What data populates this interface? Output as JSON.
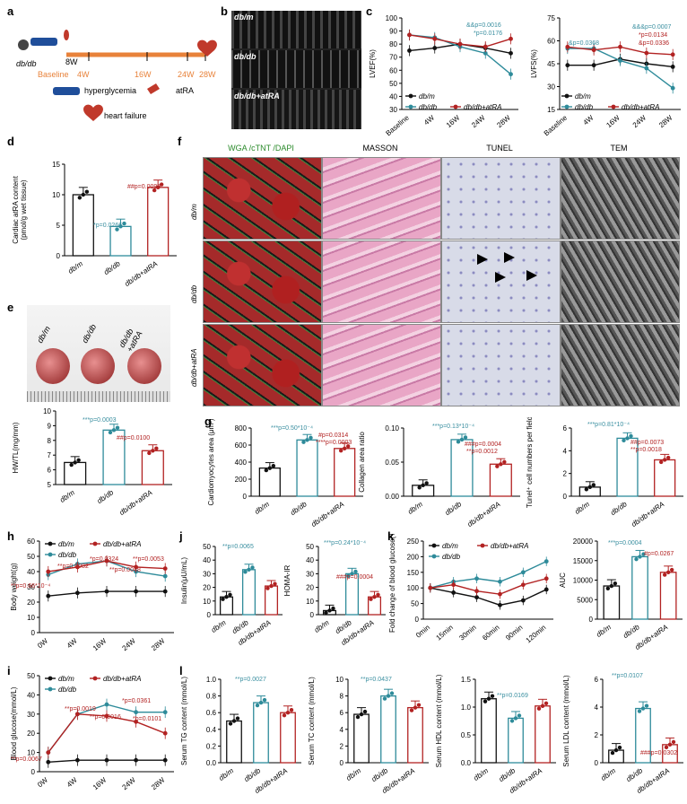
{
  "colors": {
    "dbm": "#111111",
    "dbdb": "#2e8b9a",
    "atra": "#b22222",
    "teal": "#3a8fa0"
  },
  "panels": {
    "a": {
      "letter": "a",
      "animal": "db/db",
      "times": [
        "8W",
        "4W",
        "16W",
        "24W",
        "28W"
      ],
      "baseline": "Baseline",
      "legend1": "hyperglycemia",
      "legend2": "atRA",
      "legend3": "heart failure"
    },
    "b": {
      "letter": "b",
      "rows": [
        "db/m",
        "db/db",
        "db/db+atRA"
      ]
    },
    "c": {
      "letter": "c",
      "lvef_ylabel": "LVEF(%)",
      "lvfs_ylabel": "LVFS(%)",
      "xcats": [
        "Baseline",
        "4W",
        "16W",
        "24W",
        "28W"
      ],
      "lvef_ann": [
        "&&p=0.0016",
        "*p=0.0176"
      ],
      "lvfs_ann": [
        "&p=0.0368",
        "&&&p=0.0007",
        "*p=0.0134",
        "&p=0.0336"
      ],
      "legend": [
        "db/m",
        "db/db",
        "db/db+atRA"
      ]
    },
    "d": {
      "letter": "d",
      "ylabel": "Cardiac atRA content",
      "ylabel2": "(pmol/g wet tissue)",
      "ann1": "*p=0.0266",
      "ann2": "##p=0.0095"
    },
    "e": {
      "letter": "e",
      "labels": [
        "db/m",
        "db/db",
        "db/db +atRA"
      ],
      "ylabel": "HW/TL(mg/mm)",
      "ann1": "***p=0.0003",
      "ann2": "##p=0.0100"
    },
    "f": {
      "letter": "f",
      "cols": [
        "WGA /cTNT /DAPI",
        "MASSON",
        "TUNEL",
        "TEM"
      ],
      "rows": [
        "db/m",
        "db/db",
        "db/db+atRA"
      ]
    },
    "g": {
      "letter": "g",
      "y1": "Cardiomyocytes area (μm²)",
      "y2": "Collagen area ratio",
      "y3": "Tunel⁺ cell numbers per field",
      "ann1": [
        "***p=0.50*10⁻⁴",
        "#p=0.0314",
        "****p=0.0003"
      ],
      "ann2": [
        "***p=0.13*10⁻⁴",
        "###p=0.0004",
        "**p=0.0012"
      ],
      "ann3": [
        "***p=0.81*10⁻⁴",
        "##p=0.0073",
        "**p=0.0018"
      ]
    },
    "h": {
      "letter": "h",
      "ylabel": "Body weight(g)",
      "xcats": [
        "0W",
        "4W",
        "16W",
        "24W",
        "28W"
      ],
      "legend": [
        "db/m",
        "db/db+atRA",
        "db/db"
      ],
      "ann": [
        "**p=0.0082",
        "*p=0.0324",
        "**p=0.0048",
        "**p=0.0053",
        "**p=0.66*10⁻⁴"
      ]
    },
    "i": {
      "letter": "i",
      "ylabel": "Blood glucose(mmol/L)",
      "xcats": [
        "0W",
        "4W",
        "16W",
        "24W",
        "28W"
      ],
      "legend": [
        "db/m",
        "db/db+atRA",
        "db/db"
      ],
      "ann": [
        "*p=0.0361",
        "**p=0.0019",
        "**p=0.0016",
        "*p=0.0101",
        "**p=0.0067"
      ]
    },
    "j": {
      "letter": "j",
      "y1": "Insulin(μU/mL)",
      "y2": "HOMA-IR",
      "ann1": "**p=0.0065",
      "ann2": [
        "***p=0.24*10⁻⁴",
        "###p=0.0004"
      ]
    },
    "k": {
      "letter": "k",
      "ylabel": "Fold change of blood glucose(%)",
      "xcats": [
        "0min",
        "15min",
        "30min",
        "60min",
        "90min",
        "120min"
      ],
      "legend": [
        "db/m",
        "db/db+atRA",
        "db/db"
      ],
      "y2": "AUC",
      "ann": [
        "***p=0.0004",
        "#p=0.0267"
      ]
    },
    "l": {
      "letter": "l",
      "y1": "Serum TG content (mmol/L)",
      "y2": "Serum TC content (mmol/L)",
      "y3": "Serum HDL content (mmol/L)",
      "y4": "Serum LDL content (mmol/L)",
      "ann": [
        "**p=0.0027",
        "**p=0.0437",
        "**p=0.0169",
        "**p=0.0107",
        "###p=0.0302"
      ]
    },
    "groups": [
      "db/m",
      "db/db",
      "db/db+atRA"
    ]
  },
  "chart_data": [
    {
      "type": "line",
      "id": "c-lvef",
      "categories": [
        "Baseline",
        "4W",
        "16W",
        "24W",
        "28W"
      ],
      "ylim": [
        30,
        100
      ],
      "series": [
        {
          "name": "db/m",
          "values": [
            75,
            77,
            80,
            77,
            73
          ]
        },
        {
          "name": "db/db",
          "values": [
            87,
            85,
            78,
            73,
            57
          ]
        },
        {
          "name": "db/db+atRA",
          "values": [
            87,
            84,
            80,
            78,
            84
          ]
        }
      ]
    },
    {
      "type": "line",
      "id": "c-lvfs",
      "categories": [
        "Baseline",
        "4W",
        "16W",
        "24W",
        "28W"
      ],
      "ylim": [
        15,
        75
      ],
      "series": [
        {
          "name": "db/m",
          "values": [
            44,
            44,
            48,
            45,
            43
          ]
        },
        {
          "name": "db/db",
          "values": [
            55,
            55,
            47,
            42,
            29
          ]
        },
        {
          "name": "db/db+atRA",
          "values": [
            56,
            54,
            56,
            52,
            51
          ]
        }
      ]
    },
    {
      "type": "bar",
      "id": "d",
      "categories": [
        "db/m",
        "db/db",
        "db/db+atRA"
      ],
      "values": [
        10,
        4.8,
        11.2
      ],
      "ylim": [
        0,
        15
      ]
    },
    {
      "type": "bar",
      "id": "e",
      "categories": [
        "db/m",
        "db/db",
        "db/db+atRA"
      ],
      "values": [
        6.5,
        8.7,
        7.3
      ],
      "ylim": [
        5,
        10
      ]
    },
    {
      "type": "bar",
      "id": "g1",
      "categories": [
        "db/m",
        "db/db",
        "db/db+atRA"
      ],
      "values": [
        330,
        660,
        560
      ],
      "ylim": [
        0,
        800
      ]
    },
    {
      "type": "bar",
      "id": "g2",
      "categories": [
        "db/m",
        "db/db",
        "db/db+atRA"
      ],
      "values": [
        0.016,
        0.083,
        0.047
      ],
      "ylim": [
        0,
        0.1
      ]
    },
    {
      "type": "bar",
      "id": "g3",
      "categories": [
        "db/m",
        "db/db",
        "db/db+atRA"
      ],
      "values": [
        0.8,
        5.1,
        3.2
      ],
      "ylim": [
        0,
        6
      ]
    },
    {
      "type": "line",
      "id": "h",
      "categories": [
        "0W",
        "4W",
        "16W",
        "24W",
        "28W"
      ],
      "ylim": [
        0,
        60
      ],
      "series": [
        {
          "name": "db/m",
          "values": [
            24,
            26,
            27,
            27,
            27
          ]
        },
        {
          "name": "db/db",
          "values": [
            38,
            45,
            47,
            40,
            37
          ]
        },
        {
          "name": "db/db+atRA",
          "values": [
            40,
            43,
            47,
            43,
            42
          ]
        }
      ]
    },
    {
      "type": "line",
      "id": "i",
      "categories": [
        "0W",
        "4W",
        "16W",
        "24W",
        "28W"
      ],
      "ylim": [
        0,
        50
      ],
      "series": [
        {
          "name": "db/m",
          "values": [
            5,
            6,
            6,
            6,
            6
          ]
        },
        {
          "name": "db/db",
          "values": [
            10,
            30,
            35,
            31,
            31
          ]
        },
        {
          "name": "db/db+atRA",
          "values": [
            10,
            30,
            29,
            26,
            20
          ]
        }
      ]
    },
    {
      "type": "bar",
      "id": "j1",
      "categories": [
        "db/m",
        "db/db",
        "db/db+atRA"
      ],
      "values": [
        13,
        33,
        21
      ],
      "ylim": [
        0,
        50
      ]
    },
    {
      "type": "bar",
      "id": "j2",
      "categories": [
        "db/m",
        "db/db",
        "db/db+atRA"
      ],
      "values": [
        3,
        30,
        13
      ],
      "ylim": [
        0,
        50
      ]
    },
    {
      "type": "line",
      "id": "k",
      "categories": [
        "0min",
        "15min",
        "30min",
        "60min",
        "90min",
        "120min"
      ],
      "ylim": [
        0,
        250
      ],
      "series": [
        {
          "name": "db/m",
          "values": [
            100,
            85,
            70,
            45,
            60,
            95
          ]
        },
        {
          "name": "db/db",
          "values": [
            100,
            120,
            130,
            120,
            150,
            185
          ]
        },
        {
          "name": "db/db+atRA",
          "values": [
            100,
            110,
            90,
            80,
            110,
            130
          ]
        }
      ]
    },
    {
      "type": "bar",
      "id": "k2",
      "categories": [
        "db/m",
        "db/db",
        "db/db+atRA"
      ],
      "values": [
        8500,
        16000,
        12000
      ],
      "ylim": [
        0,
        20000
      ]
    },
    {
      "type": "bar",
      "id": "l1",
      "categories": [
        "db/m",
        "db/db",
        "db/db+atRA"
      ],
      "values": [
        0.5,
        0.72,
        0.6
      ],
      "ylim": [
        0,
        1
      ]
    },
    {
      "type": "bar",
      "id": "l2",
      "categories": [
        "db/m",
        "db/db",
        "db/db+atRA"
      ],
      "values": [
        5.8,
        8.0,
        6.6
      ],
      "ylim": [
        0,
        10
      ]
    },
    {
      "type": "bar",
      "id": "l3",
      "categories": [
        "db/m",
        "db/db",
        "db/db+atRA"
      ],
      "values": [
        1.15,
        0.8,
        1.02
      ],
      "ylim": [
        0,
        1.5
      ]
    },
    {
      "type": "bar",
      "id": "l4",
      "categories": [
        "db/m",
        "db/db",
        "db/db+atRA"
      ],
      "values": [
        0.9,
        3.9,
        1.3
      ],
      "ylim": [
        0,
        6
      ]
    }
  ]
}
